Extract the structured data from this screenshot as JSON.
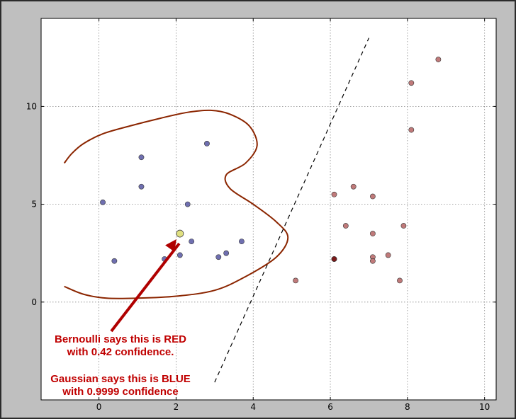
{
  "chart_data": {
    "type": "scatter",
    "xlim": [
      -1.5,
      10.3
    ],
    "ylim": [
      -5,
      14.5
    ],
    "x_ticks": [
      0,
      2,
      4,
      6,
      8,
      10
    ],
    "y_ticks": [
      0,
      5,
      10
    ],
    "grid": true,
    "series": [
      {
        "color": "#6f6fb0",
        "points": [
          [
            0.1,
            5.1
          ],
          [
            0.4,
            2.1
          ],
          [
            1.1,
            7.4
          ],
          [
            1.1,
            5.9
          ],
          [
            1.7,
            2.2
          ],
          [
            2.1,
            2.4
          ],
          [
            2.3,
            5.0
          ],
          [
            2.4,
            3.1
          ],
          [
            2.8,
            8.1
          ],
          [
            3.1,
            2.3
          ],
          [
            3.3,
            2.5
          ],
          [
            3.7,
            3.1
          ]
        ]
      },
      {
        "color": "#c07a7a",
        "points": [
          [
            5.1,
            1.1
          ],
          [
            6.1,
            5.5
          ],
          [
            6.1,
            2.2
          ],
          [
            6.4,
            3.9
          ],
          [
            6.6,
            5.9
          ],
          [
            7.1,
            5.4
          ],
          [
            7.1,
            3.5
          ],
          [
            7.1,
            2.3
          ],
          [
            7.1,
            2.1
          ],
          [
            7.5,
            2.4
          ],
          [
            7.8,
            1.1
          ],
          [
            7.9,
            3.9
          ],
          [
            8.1,
            8.8
          ],
          [
            8.1,
            11.2
          ],
          [
            8.8,
            12.4
          ]
        ]
      },
      {
        "color": "#7a1a1a",
        "points": [
          [
            6.1,
            2.2
          ]
        ]
      }
    ],
    "query_point": {
      "x": 2.1,
      "y": 3.5,
      "color": "#e0e080"
    },
    "linear_boundary": {
      "style": "dashed",
      "color": "#000000",
      "points": [
        [
          3.0,
          -4.1
        ],
        [
          7.0,
          13.5
        ]
      ]
    },
    "curved_boundary": {
      "color": "#8b2500",
      "points": [
        [
          -0.9,
          7.1
        ],
        [
          -0.7,
          7.6
        ],
        [
          -0.4,
          8.1
        ],
        [
          0.1,
          8.6
        ],
        [
          0.8,
          9.0
        ],
        [
          1.6,
          9.4
        ],
        [
          2.3,
          9.7
        ],
        [
          2.9,
          9.8
        ],
        [
          3.4,
          9.6
        ],
        [
          3.9,
          9.0
        ],
        [
          4.1,
          8.0
        ],
        [
          3.8,
          7.1
        ],
        [
          3.3,
          6.5
        ],
        [
          3.4,
          5.8
        ],
        [
          4.0,
          5.0
        ],
        [
          4.6,
          4.1
        ],
        [
          4.9,
          3.3
        ],
        [
          4.6,
          2.3
        ],
        [
          3.8,
          1.3
        ],
        [
          3.0,
          0.6
        ],
        [
          2.0,
          0.3
        ],
        [
          1.0,
          0.2
        ],
        [
          0.2,
          0.2
        ],
        [
          -0.4,
          0.4
        ],
        [
          -0.9,
          0.8
        ]
      ]
    },
    "annotation": {
      "lines": [
        "Bernoulli says this is RED",
        "with 0.42 confidence.",
        "",
        "Gaussian says this is BLUE",
        "with 0.9999 confidence"
      ],
      "arrow_color": "#b00000"
    }
  }
}
